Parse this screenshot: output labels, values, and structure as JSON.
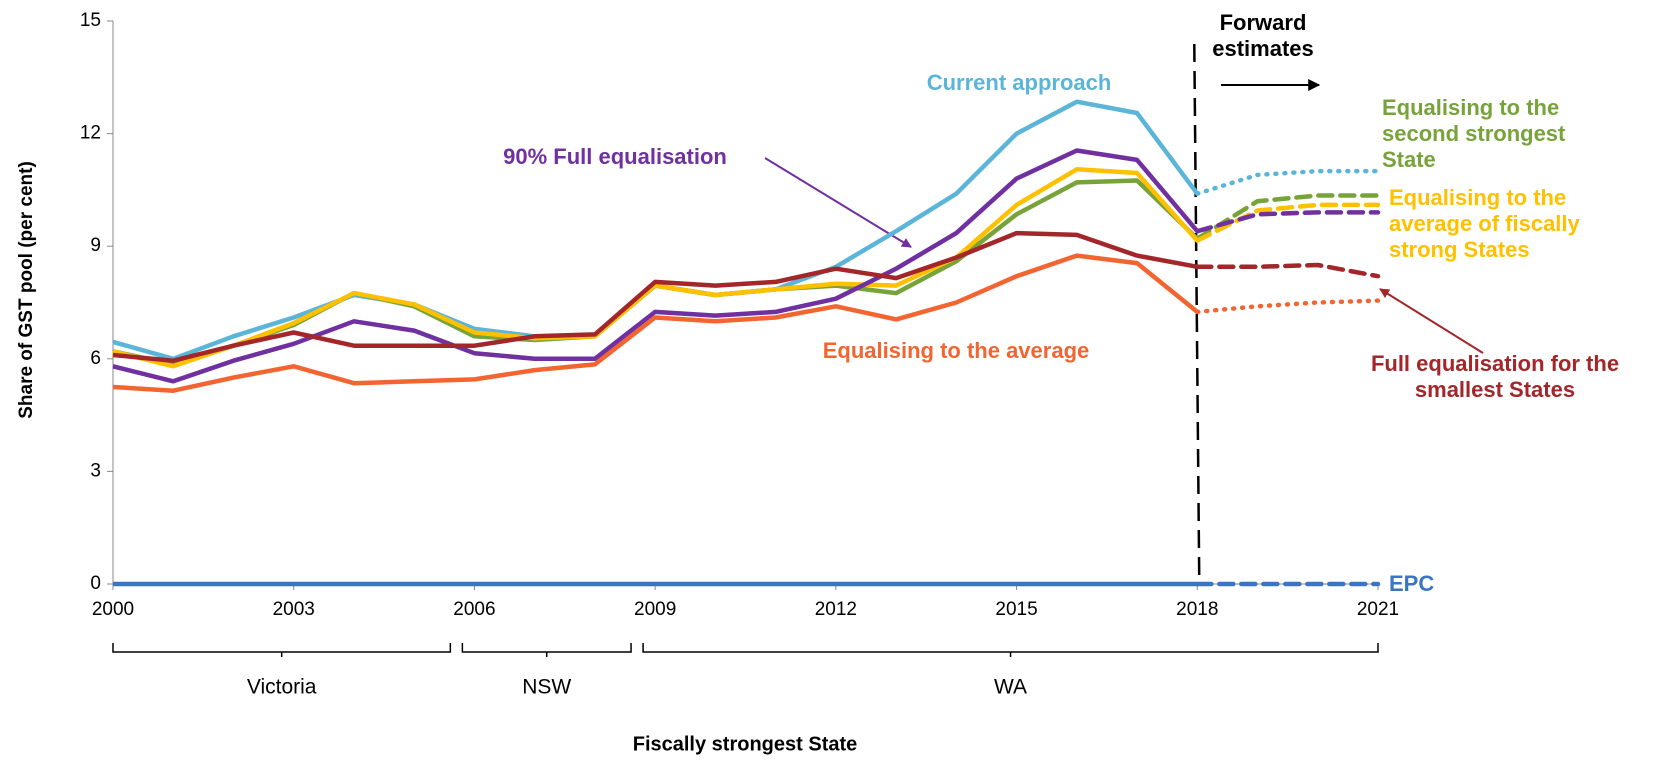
{
  "chart_data": {
    "type": "line",
    "y_label": "Share of GST pool (per cent)",
    "x_label": "Fiscally strongest State",
    "x": [
      2000,
      2001,
      2002,
      2003,
      2004,
      2005,
      2006,
      2007,
      2008,
      2009,
      2010,
      2011,
      2012,
      2013,
      2014,
      2015,
      2016,
      2017,
      2018,
      2019,
      2020,
      2021
    ],
    "xlim": [
      2000,
      2021
    ],
    "xticks": [
      2000,
      2003,
      2006,
      2009,
      2012,
      2015,
      2018,
      2021
    ],
    "ylim": [
      0,
      15
    ],
    "yticks": [
      0,
      3,
      6,
      9,
      12,
      15
    ],
    "grid": false,
    "forecast_from": 2018,
    "forecast_label": "Forward estimates",
    "groups": [
      {
        "label": "Victoria",
        "from": 2000,
        "to": 2005
      },
      {
        "label": "NSW",
        "from": 2006,
        "to": 2008
      },
      {
        "label": "WA",
        "from": 2009,
        "to": 2021
      }
    ],
    "series": [
      {
        "name": "Current approach",
        "color": "#5bb5d8",
        "forecast_dash": "dotted",
        "values": [
          6.45,
          6.0,
          6.6,
          7.1,
          7.7,
          7.45,
          6.8,
          6.6,
          6.6,
          7.95,
          7.7,
          7.85,
          8.45,
          9.4,
          10.4,
          12.0,
          12.85,
          12.55,
          10.4,
          10.9,
          11.0,
          11.0
        ]
      },
      {
        "name": "Equalising to the second strongest State",
        "color": "#77a33a",
        "forecast_dash": "dashed",
        "values": [
          6.2,
          5.85,
          6.35,
          6.9,
          7.75,
          7.4,
          6.6,
          6.5,
          6.6,
          7.95,
          7.7,
          7.85,
          7.95,
          7.75,
          8.6,
          9.85,
          10.7,
          10.75,
          9.2,
          10.2,
          10.35,
          10.35
        ]
      },
      {
        "name": "Equalising to the average of fiscally strong States",
        "color": "#ffc000",
        "forecast_dash": "dashed",
        "values": [
          6.2,
          5.8,
          6.35,
          6.95,
          7.75,
          7.45,
          6.7,
          6.55,
          6.6,
          7.95,
          7.7,
          7.85,
          8.0,
          7.95,
          8.7,
          10.1,
          11.05,
          10.95,
          9.15,
          9.95,
          10.1,
          10.1
        ]
      },
      {
        "name": "90% Full equalisation",
        "color": "#7030a0",
        "forecast_dash": "dashed",
        "values": [
          5.8,
          5.4,
          5.95,
          6.4,
          7.0,
          6.75,
          6.15,
          6.0,
          6.0,
          7.25,
          7.15,
          7.25,
          7.6,
          8.4,
          9.35,
          10.8,
          11.55,
          11.3,
          9.4,
          9.85,
          9.9,
          9.9
        ]
      },
      {
        "name": "Full equalisation for the smallest States",
        "color": "#a3262a",
        "forecast_dash": "dashed",
        "values": [
          6.1,
          5.95,
          6.35,
          6.7,
          6.35,
          6.35,
          6.35,
          6.6,
          6.65,
          8.05,
          7.95,
          8.05,
          8.4,
          8.15,
          8.7,
          9.35,
          9.3,
          8.75,
          8.45,
          8.45,
          8.5,
          8.2
        ]
      },
      {
        "name": "Equalising to the average",
        "color": "#f26531",
        "forecast_dash": "dotted",
        "values": [
          5.25,
          5.15,
          5.5,
          5.8,
          5.35,
          5.4,
          5.45,
          5.7,
          5.85,
          7.1,
          7.0,
          7.1,
          7.4,
          7.05,
          7.5,
          8.2,
          8.75,
          8.55,
          7.25,
          7.4,
          7.5,
          7.55
        ]
      },
      {
        "name": "EPC",
        "color": "#3a75c4",
        "forecast_dash": "dashed",
        "values": [
          0,
          0,
          0,
          0,
          0,
          0,
          0,
          0,
          0,
          0,
          0,
          0,
          0,
          0,
          0,
          0,
          0,
          0,
          0,
          0,
          0,
          0
        ]
      }
    ]
  }
}
